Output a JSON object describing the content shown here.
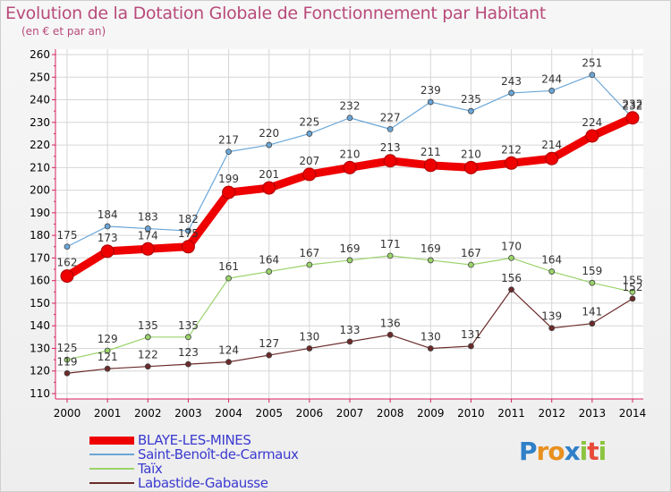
{
  "header": {
    "title": "Evolution de la Dotation Globale de Fonctionnement par Habitant",
    "subtitle": "(en € et par an)"
  },
  "logo": {
    "text": "Proxiti"
  },
  "chart_data": {
    "type": "line",
    "title": "Evolution de la Dotation Globale de Fonctionnement par Habitant",
    "subtitle": "(en € et par an)",
    "xlabel": "",
    "ylabel": "",
    "ylim": [
      110,
      260
    ],
    "yticks": [
      110,
      120,
      130,
      140,
      150,
      160,
      170,
      180,
      190,
      200,
      210,
      220,
      230,
      240,
      250,
      260
    ],
    "categories": [
      "2000",
      "2001",
      "2002",
      "2003",
      "2004",
      "2005",
      "2006",
      "2007",
      "2008",
      "2009",
      "2010",
      "2011",
      "2012",
      "2013",
      "2014"
    ],
    "grid": true,
    "legend_position": "bottom-left",
    "series": [
      {
        "name": "BLAYE-LES-MINES",
        "color": "#ee0000",
        "emphasis": true,
        "values": [
          162,
          173,
          174,
          175,
          199,
          201,
          207,
          210,
          213,
          211,
          210,
          212,
          214,
          224,
          232
        ]
      },
      {
        "name": "Saint-Benoît-de-Carmaux",
        "color": "#6aa6d8",
        "values": [
          175,
          184,
          183,
          182,
          217,
          220,
          225,
          232,
          227,
          239,
          235,
          243,
          244,
          251,
          232
        ]
      },
      {
        "name": "Taïx",
        "color": "#9ad36a",
        "values": [
          125,
          129,
          135,
          135,
          161,
          164,
          167,
          169,
          171,
          169,
          167,
          170,
          164,
          159,
          155
        ]
      },
      {
        "name": "Labastide-Gabausse",
        "color": "#6b2a2a",
        "values": [
          119,
          121,
          122,
          123,
          124,
          127,
          130,
          133,
          136,
          130,
          131,
          156,
          139,
          141,
          152
        ]
      }
    ]
  }
}
